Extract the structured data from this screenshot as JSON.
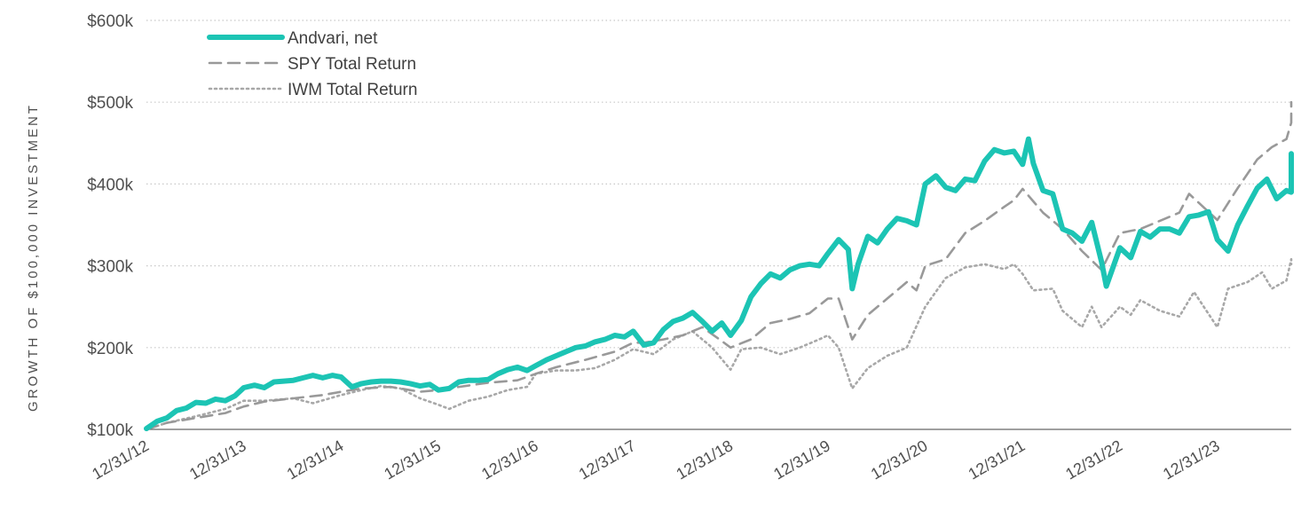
{
  "chart_data": {
    "type": "line",
    "title": "",
    "ylabel": "GROWTH OF $100,000 INVESTMENT",
    "xlabel": "",
    "ylim": [
      100,
      600
    ],
    "yunit": "$ thousands",
    "yticks": [
      {
        "value": 100,
        "label": "$100k"
      },
      {
        "value": 200,
        "label": "$200k"
      },
      {
        "value": 300,
        "label": "$300k"
      },
      {
        "value": 400,
        "label": "$400k"
      },
      {
        "value": 500,
        "label": "$500k"
      },
      {
        "value": 600,
        "label": "$600k"
      }
    ],
    "xticks": [
      {
        "value": 2012.99,
        "label": "12/31/12"
      },
      {
        "value": 2013.99,
        "label": "12/31/13"
      },
      {
        "value": 2014.99,
        "label": "12/31/14"
      },
      {
        "value": 2015.99,
        "label": "12/31/15"
      },
      {
        "value": 2016.99,
        "label": "12/31/16"
      },
      {
        "value": 2017.99,
        "label": "12/31/17"
      },
      {
        "value": 2018.99,
        "label": "12/31/18"
      },
      {
        "value": 2019.99,
        "label": "12/31/19"
      },
      {
        "value": 2020.99,
        "label": "12/31/20"
      },
      {
        "value": 2021.99,
        "label": "12/31/21"
      },
      {
        "value": 2022.99,
        "label": "12/31/22"
      },
      {
        "value": 2023.99,
        "label": "12/31/23"
      }
    ],
    "xlim": [
      2012.99,
      2024.75
    ],
    "grid": "horizontal-dotted",
    "legend_position": "top-left",
    "series": [
      {
        "name": "Andvari, net",
        "color": "#1cc4b4",
        "style": "solid",
        "points": [
          [
            2012.99,
            101
          ],
          [
            2013.1,
            110
          ],
          [
            2013.2,
            114
          ],
          [
            2013.3,
            123
          ],
          [
            2013.4,
            126
          ],
          [
            2013.5,
            133
          ],
          [
            2013.6,
            132
          ],
          [
            2013.7,
            137
          ],
          [
            2013.8,
            135
          ],
          [
            2013.9,
            141
          ],
          [
            2013.99,
            151
          ],
          [
            2014.1,
            154
          ],
          [
            2014.2,
            151
          ],
          [
            2014.3,
            158
          ],
          [
            2014.4,
            159
          ],
          [
            2014.5,
            160
          ],
          [
            2014.6,
            163
          ],
          [
            2014.7,
            166
          ],
          [
            2014.8,
            163
          ],
          [
            2014.9,
            166
          ],
          [
            2014.99,
            164
          ],
          [
            2015.1,
            152
          ],
          [
            2015.2,
            156
          ],
          [
            2015.3,
            158
          ],
          [
            2015.4,
            159
          ],
          [
            2015.5,
            159
          ],
          [
            2015.6,
            158
          ],
          [
            2015.7,
            156
          ],
          [
            2015.8,
            153
          ],
          [
            2015.9,
            155
          ],
          [
            2015.99,
            148
          ],
          [
            2016.1,
            150
          ],
          [
            2016.2,
            158
          ],
          [
            2016.3,
            160
          ],
          [
            2016.4,
            160
          ],
          [
            2016.5,
            161
          ],
          [
            2016.6,
            168
          ],
          [
            2016.7,
            173
          ],
          [
            2016.8,
            176
          ],
          [
            2016.9,
            172
          ],
          [
            2016.99,
            178
          ],
          [
            2017.1,
            185
          ],
          [
            2017.2,
            190
          ],
          [
            2017.3,
            195
          ],
          [
            2017.4,
            200
          ],
          [
            2017.5,
            202
          ],
          [
            2017.6,
            207
          ],
          [
            2017.7,
            210
          ],
          [
            2017.8,
            215
          ],
          [
            2017.9,
            213
          ],
          [
            2017.99,
            220
          ],
          [
            2018.1,
            203
          ],
          [
            2018.2,
            206
          ],
          [
            2018.3,
            222
          ],
          [
            2018.4,
            232
          ],
          [
            2018.5,
            236
          ],
          [
            2018.6,
            243
          ],
          [
            2018.7,
            232
          ],
          [
            2018.8,
            220
          ],
          [
            2018.9,
            230
          ],
          [
            2018.99,
            215
          ],
          [
            2019.1,
            233
          ],
          [
            2019.2,
            262
          ],
          [
            2019.3,
            278
          ],
          [
            2019.4,
            290
          ],
          [
            2019.5,
            285
          ],
          [
            2019.6,
            295
          ],
          [
            2019.7,
            300
          ],
          [
            2019.8,
            302
          ],
          [
            2019.9,
            300
          ],
          [
            2019.99,
            315
          ],
          [
            2020.1,
            332
          ],
          [
            2020.2,
            320
          ],
          [
            2020.24,
            272
          ],
          [
            2020.3,
            302
          ],
          [
            2020.4,
            336
          ],
          [
            2020.5,
            328
          ],
          [
            2020.6,
            345
          ],
          [
            2020.7,
            358
          ],
          [
            2020.8,
            355
          ],
          [
            2020.9,
            350
          ],
          [
            2020.99,
            400
          ],
          [
            2021.1,
            410
          ],
          [
            2021.2,
            396
          ],
          [
            2021.3,
            392
          ],
          [
            2021.4,
            406
          ],
          [
            2021.5,
            404
          ],
          [
            2021.6,
            428
          ],
          [
            2021.7,
            442
          ],
          [
            2021.8,
            438
          ],
          [
            2021.9,
            440
          ],
          [
            2021.99,
            424
          ],
          [
            2022.05,
            455
          ],
          [
            2022.1,
            425
          ],
          [
            2022.2,
            392
          ],
          [
            2022.3,
            388
          ],
          [
            2022.4,
            345
          ],
          [
            2022.5,
            340
          ],
          [
            2022.6,
            330
          ],
          [
            2022.7,
            353
          ],
          [
            2022.8,
            305
          ],
          [
            2022.85,
            275
          ],
          [
            2022.99,
            322
          ],
          [
            2023.1,
            310
          ],
          [
            2023.2,
            342
          ],
          [
            2023.3,
            335
          ],
          [
            2023.4,
            345
          ],
          [
            2023.5,
            345
          ],
          [
            2023.6,
            340
          ],
          [
            2023.7,
            360
          ],
          [
            2023.8,
            362
          ],
          [
            2023.9,
            366
          ],
          [
            2023.99,
            332
          ],
          [
            2024.1,
            318
          ],
          [
            2024.2,
            350
          ],
          [
            2024.3,
            373
          ],
          [
            2024.4,
            395
          ],
          [
            2024.5,
            406
          ],
          [
            2024.6,
            382
          ],
          [
            2024.7,
            392
          ],
          [
            2024.75,
            390
          ],
          [
            2024.85,
            420
          ],
          [
            2024.95,
            432
          ],
          [
            2025.05,
            437
          ]
        ]
      },
      {
        "name": "SPY Total Return",
        "color": "#999999",
        "style": "dashed",
        "points": [
          [
            2012.99,
            100
          ],
          [
            2013.2,
            108
          ],
          [
            2013.5,
            114
          ],
          [
            2013.8,
            120
          ],
          [
            2013.99,
            128
          ],
          [
            2014.2,
            134
          ],
          [
            2014.5,
            138
          ],
          [
            2014.8,
            142
          ],
          [
            2014.99,
            146
          ],
          [
            2015.2,
            150
          ],
          [
            2015.5,
            152
          ],
          [
            2015.8,
            146
          ],
          [
            2015.99,
            148
          ],
          [
            2016.2,
            152
          ],
          [
            2016.5,
            157
          ],
          [
            2016.8,
            160
          ],
          [
            2016.99,
            168
          ],
          [
            2017.2,
            176
          ],
          [
            2017.5,
            185
          ],
          [
            2017.8,
            195
          ],
          [
            2017.99,
            206
          ],
          [
            2018.1,
            206
          ],
          [
            2018.3,
            210
          ],
          [
            2018.5,
            215
          ],
          [
            2018.7,
            225
          ],
          [
            2018.9,
            208
          ],
          [
            2018.99,
            200
          ],
          [
            2019.2,
            210
          ],
          [
            2019.4,
            230
          ],
          [
            2019.6,
            235
          ],
          [
            2019.8,
            242
          ],
          [
            2019.99,
            260
          ],
          [
            2020.1,
            260
          ],
          [
            2020.24,
            210
          ],
          [
            2020.4,
            240
          ],
          [
            2020.6,
            260
          ],
          [
            2020.8,
            280
          ],
          [
            2020.9,
            270
          ],
          [
            2020.99,
            300
          ],
          [
            2021.2,
            308
          ],
          [
            2021.4,
            340
          ],
          [
            2021.6,
            355
          ],
          [
            2021.8,
            372
          ],
          [
            2021.9,
            380
          ],
          [
            2021.99,
            394
          ],
          [
            2022.2,
            365
          ],
          [
            2022.4,
            345
          ],
          [
            2022.6,
            318
          ],
          [
            2022.8,
            295
          ],
          [
            2022.99,
            340
          ],
          [
            2023.2,
            345
          ],
          [
            2023.4,
            355
          ],
          [
            2023.6,
            365
          ],
          [
            2023.7,
            388
          ],
          [
            2023.99,
            356
          ],
          [
            2024.2,
            395
          ],
          [
            2024.4,
            430
          ],
          [
            2024.55,
            445
          ],
          [
            2024.7,
            455
          ],
          [
            2024.9,
            475
          ],
          [
            2025.05,
            500
          ]
        ]
      },
      {
        "name": "IWM Total Return",
        "color": "#a8a8a8",
        "style": "dotted",
        "points": [
          [
            2012.99,
            100
          ],
          [
            2013.2,
            108
          ],
          [
            2013.5,
            116
          ],
          [
            2013.8,
            125
          ],
          [
            2013.99,
            135
          ],
          [
            2014.2,
            135
          ],
          [
            2014.5,
            138
          ],
          [
            2014.7,
            132
          ],
          [
            2014.99,
            142
          ],
          [
            2015.2,
            148
          ],
          [
            2015.4,
            153
          ],
          [
            2015.6,
            150
          ],
          [
            2015.8,
            138
          ],
          [
            2015.99,
            130
          ],
          [
            2016.1,
            125
          ],
          [
            2016.3,
            135
          ],
          [
            2016.5,
            140
          ],
          [
            2016.7,
            148
          ],
          [
            2016.9,
            152
          ],
          [
            2016.99,
            168
          ],
          [
            2017.2,
            172
          ],
          [
            2017.4,
            172
          ],
          [
            2017.6,
            175
          ],
          [
            2017.8,
            185
          ],
          [
            2017.99,
            198
          ],
          [
            2018.2,
            192
          ],
          [
            2018.4,
            210
          ],
          [
            2018.6,
            220
          ],
          [
            2018.8,
            200
          ],
          [
            2018.99,
            173
          ],
          [
            2019.1,
            198
          ],
          [
            2019.3,
            200
          ],
          [
            2019.5,
            192
          ],
          [
            2019.7,
            200
          ],
          [
            2019.9,
            210
          ],
          [
            2019.99,
            215
          ],
          [
            2020.1,
            200
          ],
          [
            2020.24,
            150
          ],
          [
            2020.4,
            175
          ],
          [
            2020.6,
            190
          ],
          [
            2020.8,
            200
          ],
          [
            2020.99,
            250
          ],
          [
            2021.2,
            285
          ],
          [
            2021.4,
            298
          ],
          [
            2021.6,
            302
          ],
          [
            2021.8,
            296
          ],
          [
            2021.9,
            302
          ],
          [
            2021.99,
            290
          ],
          [
            2022.1,
            270
          ],
          [
            2022.3,
            272
          ],
          [
            2022.4,
            245
          ],
          [
            2022.6,
            225
          ],
          [
            2022.7,
            250
          ],
          [
            2022.8,
            225
          ],
          [
            2022.99,
            250
          ],
          [
            2023.1,
            240
          ],
          [
            2023.2,
            258
          ],
          [
            2023.4,
            245
          ],
          [
            2023.6,
            238
          ],
          [
            2023.75,
            268
          ],
          [
            2023.99,
            225
          ],
          [
            2024.1,
            272
          ],
          [
            2024.3,
            280
          ],
          [
            2024.45,
            292
          ],
          [
            2024.55,
            272
          ],
          [
            2024.7,
            282
          ],
          [
            2024.85,
            308
          ],
          [
            2025.05,
            302
          ]
        ]
      }
    ]
  }
}
